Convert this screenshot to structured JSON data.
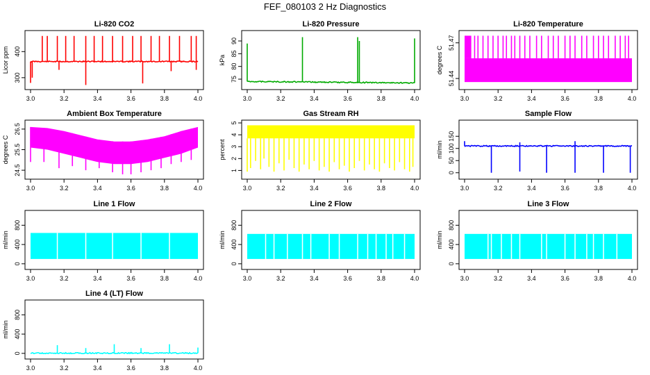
{
  "title": "FEF_080103  2 Hz Diagnostics",
  "chart_data": [
    {
      "type": "line",
      "title": "Li-820 CO2",
      "ylabel": "Licor ppm",
      "color": "#ff0000",
      "xlim": [
        3.0,
        4.0
      ],
      "ylim": [
        265,
        470
      ],
      "xticks": [
        "3.0",
        "3.2",
        "3.4",
        "3.6",
        "3.8",
        "4.0"
      ],
      "yticks": [
        300,
        400
      ],
      "series": [
        {
          "name": "baseline",
          "kind": "flat",
          "x": [
            3.0,
            4.0
          ],
          "values": [
            362,
            362
          ]
        },
        {
          "name": "spikes",
          "kind": "spikes",
          "x": [
            3.07,
            3.1,
            3.16,
            3.21,
            3.26,
            3.33,
            3.38,
            3.43,
            3.49,
            3.55,
            3.61,
            3.66,
            3.72,
            3.77,
            3.83,
            3.89,
            3.96,
            3.99
          ],
          "values": [
            460,
            460,
            460,
            460,
            460,
            460,
            460,
            460,
            460,
            460,
            460,
            460,
            460,
            460,
            460,
            460,
            460,
            460
          ]
        },
        {
          "name": "dips",
          "kind": "dips",
          "x": [
            3.0,
            3.01,
            3.17,
            3.33,
            3.67,
            3.84,
            3.99
          ],
          "values": [
            280,
            300,
            330,
            272,
            278,
            325,
            330
          ]
        }
      ]
    },
    {
      "type": "line",
      "title": "Li-820 Pressure",
      "ylabel": "kPa",
      "color": "#00aa00",
      "xlim": [
        3.0,
        4.0
      ],
      "ylim": [
        72,
        93
      ],
      "xticks": [
        "3.0",
        "3.2",
        "3.4",
        "3.6",
        "3.8",
        "4.0"
      ],
      "yticks": [
        75,
        80,
        85,
        90
      ],
      "series": [
        {
          "name": "baseline",
          "kind": "flat",
          "x": [
            3.0,
            4.0
          ],
          "values": [
            74.1,
            73.5
          ]
        },
        {
          "name": "spikes",
          "kind": "spikes",
          "x": [
            3.0,
            3.33,
            3.66,
            3.67,
            4.0
          ],
          "values": [
            89,
            91.5,
            91.5,
            90,
            91
          ]
        }
      ]
    },
    {
      "type": "line",
      "title": "Li-820 Temperature",
      "ylabel": "degrees C",
      "color": "#ff00ff",
      "xlim": [
        3.0,
        4.0
      ],
      "ylim": [
        51.433,
        51.478
      ],
      "xticks": [
        "3.0",
        "3.2",
        "3.4",
        "3.6",
        "3.8",
        "4.0"
      ],
      "yticks": [
        51.44,
        51.47
      ],
      "series": [
        {
          "name": "band",
          "kind": "band",
          "x": [
            3.0,
            4.0
          ],
          "values": [
            51.437,
            51.457
          ]
        },
        {
          "name": "upper-band",
          "kind": "band",
          "x": [
            3.0,
            3.04
          ],
          "values": [
            51.457,
            51.476
          ]
        },
        {
          "name": "upper-spikes",
          "kind": "spikes",
          "x": [
            3.06,
            3.08,
            3.11,
            3.14,
            3.17,
            3.2,
            3.23,
            3.25,
            3.28,
            3.3,
            3.33,
            3.36,
            3.39,
            3.43,
            3.46,
            3.5,
            3.53,
            3.56,
            3.6,
            3.63,
            3.66,
            3.7,
            3.73,
            3.77,
            3.8,
            3.83,
            3.86,
            3.9,
            3.93,
            3.96,
            3.98
          ],
          "values": [
            51.476,
            51.476,
            51.476,
            51.476,
            51.476,
            51.476,
            51.476,
            51.476,
            51.476,
            51.476,
            51.476,
            51.476,
            51.476,
            51.476,
            51.476,
            51.476,
            51.476,
            51.476,
            51.476,
            51.476,
            51.476,
            51.476,
            51.476,
            51.476,
            51.476,
            51.476,
            51.476,
            51.476,
            51.476,
            51.476,
            51.476
          ]
        }
      ]
    },
    {
      "type": "line",
      "title": "Ambient Box Temperature",
      "ylabel": "degrees C",
      "color": "#ff00ff",
      "xlim": [
        3.0,
        4.0
      ],
      "ylim": [
        24.2,
        26.8
      ],
      "xticks": [
        "3.0",
        "3.2",
        "3.4",
        "3.6",
        "3.8",
        "4.0"
      ],
      "yticks": [
        24.5,
        25.5,
        26.5
      ],
      "series": [
        {
          "name": "upper-envelope",
          "kind": "envelope-top",
          "x": [
            3.0,
            3.1,
            3.2,
            3.3,
            3.4,
            3.5,
            3.6,
            3.7,
            3.8,
            3.9,
            4.0
          ],
          "values": [
            26.6,
            26.55,
            26.4,
            26.2,
            26.0,
            25.9,
            25.9,
            26.0,
            26.15,
            26.4,
            26.6
          ]
        },
        {
          "name": "lower-envelope",
          "kind": "envelope-bottom",
          "x": [
            3.0,
            3.1,
            3.2,
            3.3,
            3.4,
            3.5,
            3.6,
            3.7,
            3.8,
            3.9,
            4.0
          ],
          "values": [
            25.6,
            25.5,
            25.3,
            25.1,
            24.9,
            24.8,
            24.8,
            24.9,
            25.1,
            25.3,
            25.6
          ]
        },
        {
          "name": "dips",
          "kind": "dips",
          "x": [
            3.0,
            3.08,
            3.17,
            3.25,
            3.33,
            3.41,
            3.49,
            3.55,
            3.6,
            3.66,
            3.72,
            3.78,
            3.84,
            3.9,
            3.96
          ],
          "values": [
            24.9,
            24.9,
            24.6,
            24.7,
            24.5,
            24.6,
            24.4,
            24.3,
            24.3,
            24.4,
            24.5,
            24.6,
            24.8,
            24.9,
            25.0
          ]
        }
      ]
    },
    {
      "type": "line",
      "title": "Gas Stream RH",
      "ylabel": "percent",
      "color": "#ffff00",
      "xlim": [
        3.0,
        4.0
      ],
      "ylim": [
        0.5,
        5.0
      ],
      "xticks": [
        "3.0",
        "3.2",
        "3.4",
        "3.6",
        "3.8",
        "4.0"
      ],
      "yticks": [
        1,
        2,
        3,
        4,
        5
      ],
      "series": [
        {
          "name": "band",
          "kind": "band",
          "x": [
            3.0,
            4.0
          ],
          "values": [
            3.7,
            4.8
          ]
        },
        {
          "name": "dips",
          "kind": "dips",
          "x": [
            3.0,
            3.02,
            3.05,
            3.08,
            3.1,
            3.13,
            3.16,
            3.19,
            3.22,
            3.25,
            3.28,
            3.31,
            3.34,
            3.37,
            3.4,
            3.43,
            3.46,
            3.49,
            3.52,
            3.55,
            3.58,
            3.61,
            3.64,
            3.67,
            3.7,
            3.73,
            3.76,
            3.79,
            3.82,
            3.85,
            3.88,
            3.91,
            3.94,
            3.97,
            3.99
          ],
          "values": [
            0.9,
            1.2,
            1.8,
            1.1,
            2.0,
            1.3,
            0.9,
            1.6,
            1.0,
            1.9,
            1.2,
            0.9,
            1.5,
            1.1,
            1.8,
            1.0,
            1.3,
            0.9,
            1.7,
            1.1,
            1.4,
            0.9,
            1.2,
            1.8,
            1.0,
            1.5,
            1.1,
            0.9,
            1.6,
            1.2,
            1.0,
            1.7,
            1.1,
            0.9,
            1.3
          ]
        }
      ]
    },
    {
      "type": "line",
      "title": "Sample Flow",
      "ylabel": "ml/min",
      "color": "#0000ff",
      "xlim": [
        3.0,
        4.0
      ],
      "ylim": [
        -15,
        205
      ],
      "xticks": [
        "3.0",
        "3.2",
        "3.4",
        "3.6",
        "3.8",
        "4.0"
      ],
      "yticks": [
        0,
        50,
        100,
        150
      ],
      "series": [
        {
          "name": "baseline",
          "kind": "flat",
          "x": [
            3.0,
            4.0
          ],
          "values": [
            110,
            110
          ]
        },
        {
          "name": "dips",
          "kind": "dips",
          "x": [
            3.16,
            3.33,
            3.49,
            3.66,
            3.83,
            3.99
          ],
          "values": [
            0,
            5,
            0,
            0,
            0,
            0
          ]
        },
        {
          "name": "spikes",
          "kind": "spikes",
          "x": [
            3.0,
            3.33,
            3.66
          ],
          "values": [
            130,
            125,
            130
          ]
        }
      ]
    },
    {
      "type": "line",
      "title": "Line 1 Flow",
      "ylabel": "ml/min",
      "color": "#00ffff",
      "xlim": [
        3.0,
        4.0
      ],
      "ylim": [
        -60,
        1050
      ],
      "xticks": [
        "3.0",
        "3.2",
        "3.4",
        "3.6",
        "3.8",
        "4.0"
      ],
      "yticks": [
        0,
        400,
        800
      ],
      "series": [
        {
          "name": "band",
          "kind": "band",
          "x": [
            3.0,
            4.0
          ],
          "values": [
            100,
            640
          ]
        },
        {
          "name": "gaps",
          "kind": "gaps",
          "x": [
            3.16,
            3.33,
            3.49,
            3.66,
            3.83
          ],
          "values": [
            640,
            640,
            640,
            640,
            640
          ]
        }
      ]
    },
    {
      "type": "line",
      "title": "Line 2 Flow",
      "ylabel": "ml/min",
      "color": "#00ffff",
      "xlim": [
        3.0,
        4.0
      ],
      "ylim": [
        -60,
        1050
      ],
      "xticks": [
        "3.0",
        "3.2",
        "3.4",
        "3.6",
        "3.8",
        "4.0"
      ],
      "yticks": [
        0,
        400,
        800
      ],
      "series": [
        {
          "name": "band",
          "kind": "band",
          "x": [
            3.0,
            4.0
          ],
          "values": [
            100,
            620
          ]
        },
        {
          "name": "gaps",
          "kind": "gaps",
          "x": [
            3.11,
            3.16,
            3.24,
            3.33,
            3.38,
            3.49,
            3.55,
            3.66,
            3.72,
            3.77,
            3.83,
            3.87,
            3.94
          ],
          "values": [
            620,
            620,
            620,
            620,
            620,
            620,
            620,
            620,
            620,
            620,
            620,
            620,
            620
          ]
        }
      ]
    },
    {
      "type": "line",
      "title": "Line 3 Flow",
      "ylabel": "ml/min",
      "color": "#00ffff",
      "xlim": [
        3.0,
        4.0
      ],
      "ylim": [
        -60,
        1050
      ],
      "xticks": [
        "3.0",
        "3.2",
        "3.4",
        "3.6",
        "3.8",
        "4.0"
      ],
      "yticks": [
        0,
        400,
        800
      ],
      "series": [
        {
          "name": "band",
          "kind": "band",
          "x": [
            3.0,
            4.0
          ],
          "values": [
            100,
            620
          ]
        },
        {
          "name": "gaps",
          "kind": "gaps",
          "x": [
            3.14,
            3.16,
            3.22,
            3.28,
            3.33,
            3.46,
            3.49,
            3.6,
            3.66,
            3.73,
            3.77,
            3.83,
            3.91
          ],
          "values": [
            620,
            620,
            620,
            620,
            620,
            620,
            620,
            620,
            620,
            620,
            620,
            620,
            620
          ]
        }
      ]
    },
    {
      "type": "line",
      "title": "Line 4 (LT) Flow",
      "ylabel": "ml/min",
      "color": "#00ffff",
      "xlim": [
        3.0,
        4.0
      ],
      "ylim": [
        -60,
        1050
      ],
      "xticks": [
        "3.0",
        "3.2",
        "3.4",
        "3.6",
        "3.8",
        "4.0"
      ],
      "yticks": [
        0,
        400,
        800
      ],
      "series": [
        {
          "name": "baseline",
          "kind": "flat",
          "x": [
            3.0,
            4.0
          ],
          "values": [
            5,
            5
          ]
        },
        {
          "name": "spikes",
          "kind": "spikes",
          "x": [
            3.16,
            3.33,
            3.5,
            3.66,
            3.83,
            4.0
          ],
          "values": [
            170,
            110,
            190,
            110,
            190,
            120
          ]
        }
      ]
    }
  ]
}
